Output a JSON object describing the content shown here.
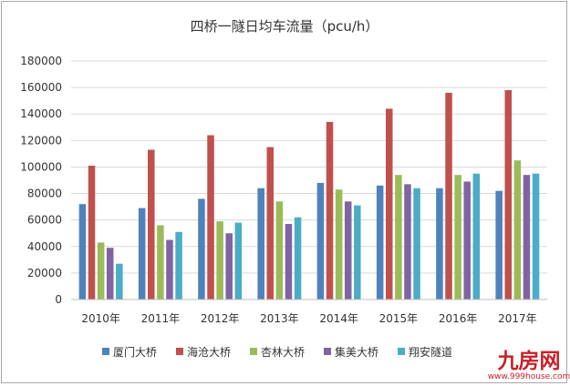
{
  "chart_data": {
    "type": "bar",
    "title": "四桥一隧日均车流量（pcu/h）",
    "xlabel": "",
    "ylabel": "",
    "ylim": [
      0,
      180000
    ],
    "yticks": [
      "0",
      "20000",
      "40000",
      "60000",
      "80000",
      "100000",
      "120000",
      "140000",
      "160000",
      "180000"
    ],
    "categories": [
      "2010年",
      "2011年",
      "2012年",
      "2013年",
      "2014年",
      "2015年",
      "2016年",
      "2017年"
    ],
    "grid": true,
    "legend_position": "bottom",
    "series": [
      {
        "name": "厦门大桥",
        "color": "#4f81bd",
        "values": [
          72000,
          69000,
          76000,
          84000,
          88000,
          86000,
          84000,
          82000
        ]
      },
      {
        "name": "海沧大桥",
        "color": "#c0504d",
        "values": [
          101000,
          113000,
          124000,
          115000,
          134000,
          144000,
          156000,
          158000
        ]
      },
      {
        "name": "杏林大桥",
        "color": "#9bbb59",
        "values": [
          43000,
          56000,
          59000,
          74000,
          83000,
          94000,
          94000,
          105000
        ]
      },
      {
        "name": "集美大桥",
        "color": "#8064a2",
        "values": [
          39000,
          45000,
          50000,
          57000,
          74000,
          87000,
          89000,
          94000
        ]
      },
      {
        "name": "翔安隧道",
        "color": "#4bacc6",
        "values": [
          27000,
          51000,
          58000,
          62000,
          71000,
          84000,
          95000,
          95000
        ]
      }
    ]
  },
  "watermark": {
    "brand": "九房网",
    "url": "www.999house.com"
  }
}
